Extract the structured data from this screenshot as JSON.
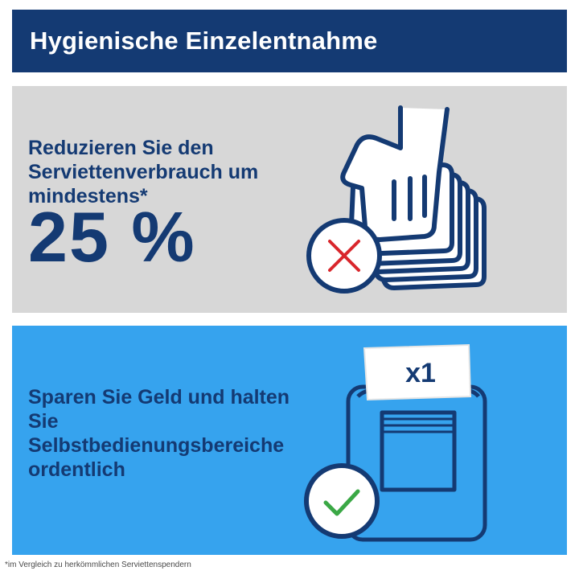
{
  "header": {
    "title": "Hygienische Einzelentnahme"
  },
  "panel_reduce": {
    "text": "Reduzieren Sie den Serviettenverbrauch um mindestens*",
    "percent": "25 %",
    "badge_icon": "cross-icon",
    "illustration_icon": "hand-grabbing-napkins-icon"
  },
  "panel_save": {
    "text": "Sparen Sie Geld und halten Sie Selbstbedienungsbereiche ordentlich",
    "counter_label": "x1",
    "badge_icon": "checkmark-icon",
    "illustration_icon": "single-napkin-dispenser-icon"
  },
  "footnote": "*im Vergleich zu herkömmlichen Serviettenspendern",
  "colors": {
    "navy": "#143a73",
    "gray_panel": "#d7d7d7",
    "blue_panel": "#36a3ee",
    "cross_red": "#d9262c",
    "check_green": "#3aa845"
  }
}
